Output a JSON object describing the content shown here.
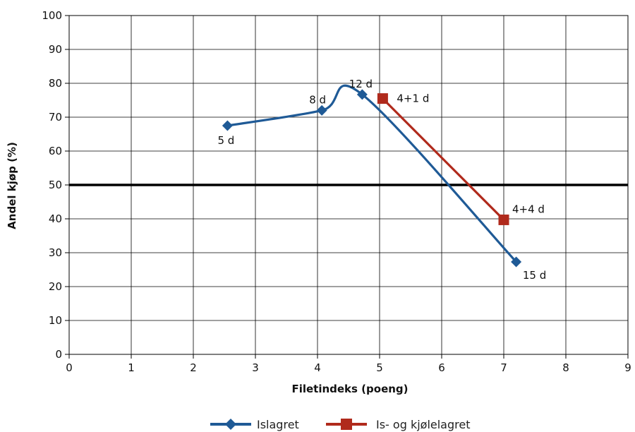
{
  "chart_data": {
    "type": "line",
    "title": "",
    "xlabel": "Filetindeks (poeng)",
    "ylabel": "Andel kjøp (%)",
    "xlim": [
      0,
      9
    ],
    "ylim": [
      0,
      100
    ],
    "x_ticks": [
      "0",
      "1",
      "2",
      "3",
      "4",
      "5",
      "6",
      "7",
      "8",
      "9"
    ],
    "y_ticks": [
      "0",
      "10",
      "20",
      "30",
      "40",
      "50",
      "60",
      "70",
      "80",
      "90",
      "100"
    ],
    "grid": true,
    "reference_line": {
      "y": 50,
      "color": "#000000"
    },
    "legend_position": "bottom",
    "series": [
      {
        "name": "Islagret",
        "color": "#1f5a96",
        "marker": "diamond",
        "points": [
          {
            "x": 2.55,
            "y": 67.5,
            "label": "5 d"
          },
          {
            "x": 4.07,
            "y": 72.0,
            "label": "8 d"
          },
          {
            "x": 4.72,
            "y": 76.7,
            "label": "12 d"
          },
          {
            "x": 7.2,
            "y": 27.3,
            "label": "15 d"
          }
        ]
      },
      {
        "name": "Is- og kjølelagret",
        "color": "#b02a1c",
        "marker": "square",
        "points": [
          {
            "x": 5.05,
            "y": 75.5,
            "label": "4+1 d"
          },
          {
            "x": 7.0,
            "y": 39.7,
            "label": "4+4 d"
          }
        ]
      }
    ]
  }
}
